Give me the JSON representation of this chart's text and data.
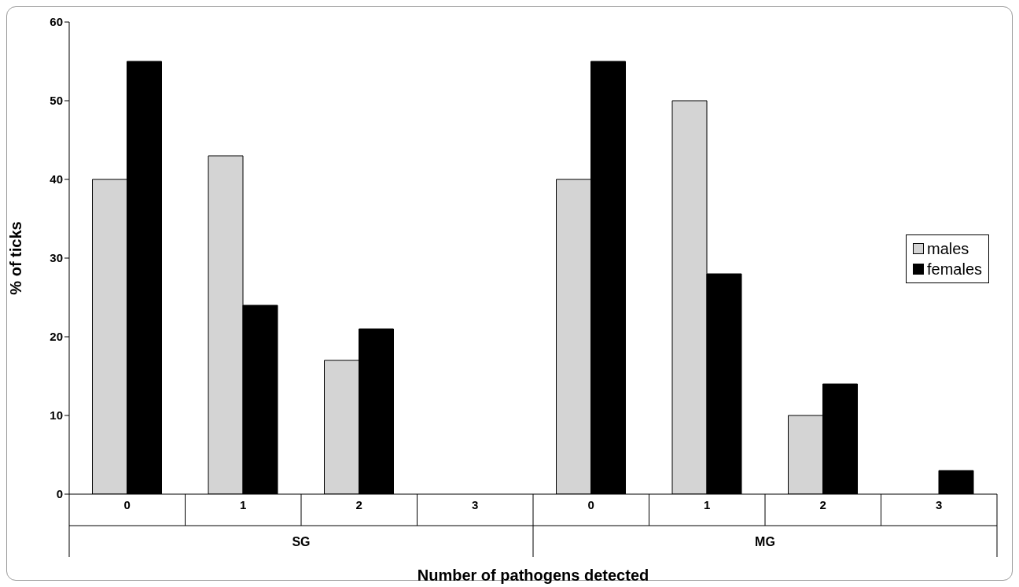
{
  "chart_data": {
    "type": "bar",
    "xlabel": "Number of pathogens detected",
    "ylabel": "% of ticks",
    "categories": [
      "0",
      "1",
      "2",
      "3",
      "0",
      "1",
      "2",
      "3"
    ],
    "annotations": [
      "SG",
      "MG"
    ],
    "series": [
      {
        "name": "males",
        "color": "#d4d4d4",
        "values": [
          40,
          43,
          17,
          0,
          40,
          50,
          10,
          0
        ]
      },
      {
        "name": "females",
        "color": "#000000",
        "values": [
          55,
          24,
          21,
          0,
          55,
          28,
          14,
          3
        ]
      }
    ],
    "ylim": [
      0,
      60
    ],
    "yticks": [
      0,
      10,
      20,
      30,
      40,
      50,
      60
    ],
    "grid": false,
    "legend": "right"
  }
}
